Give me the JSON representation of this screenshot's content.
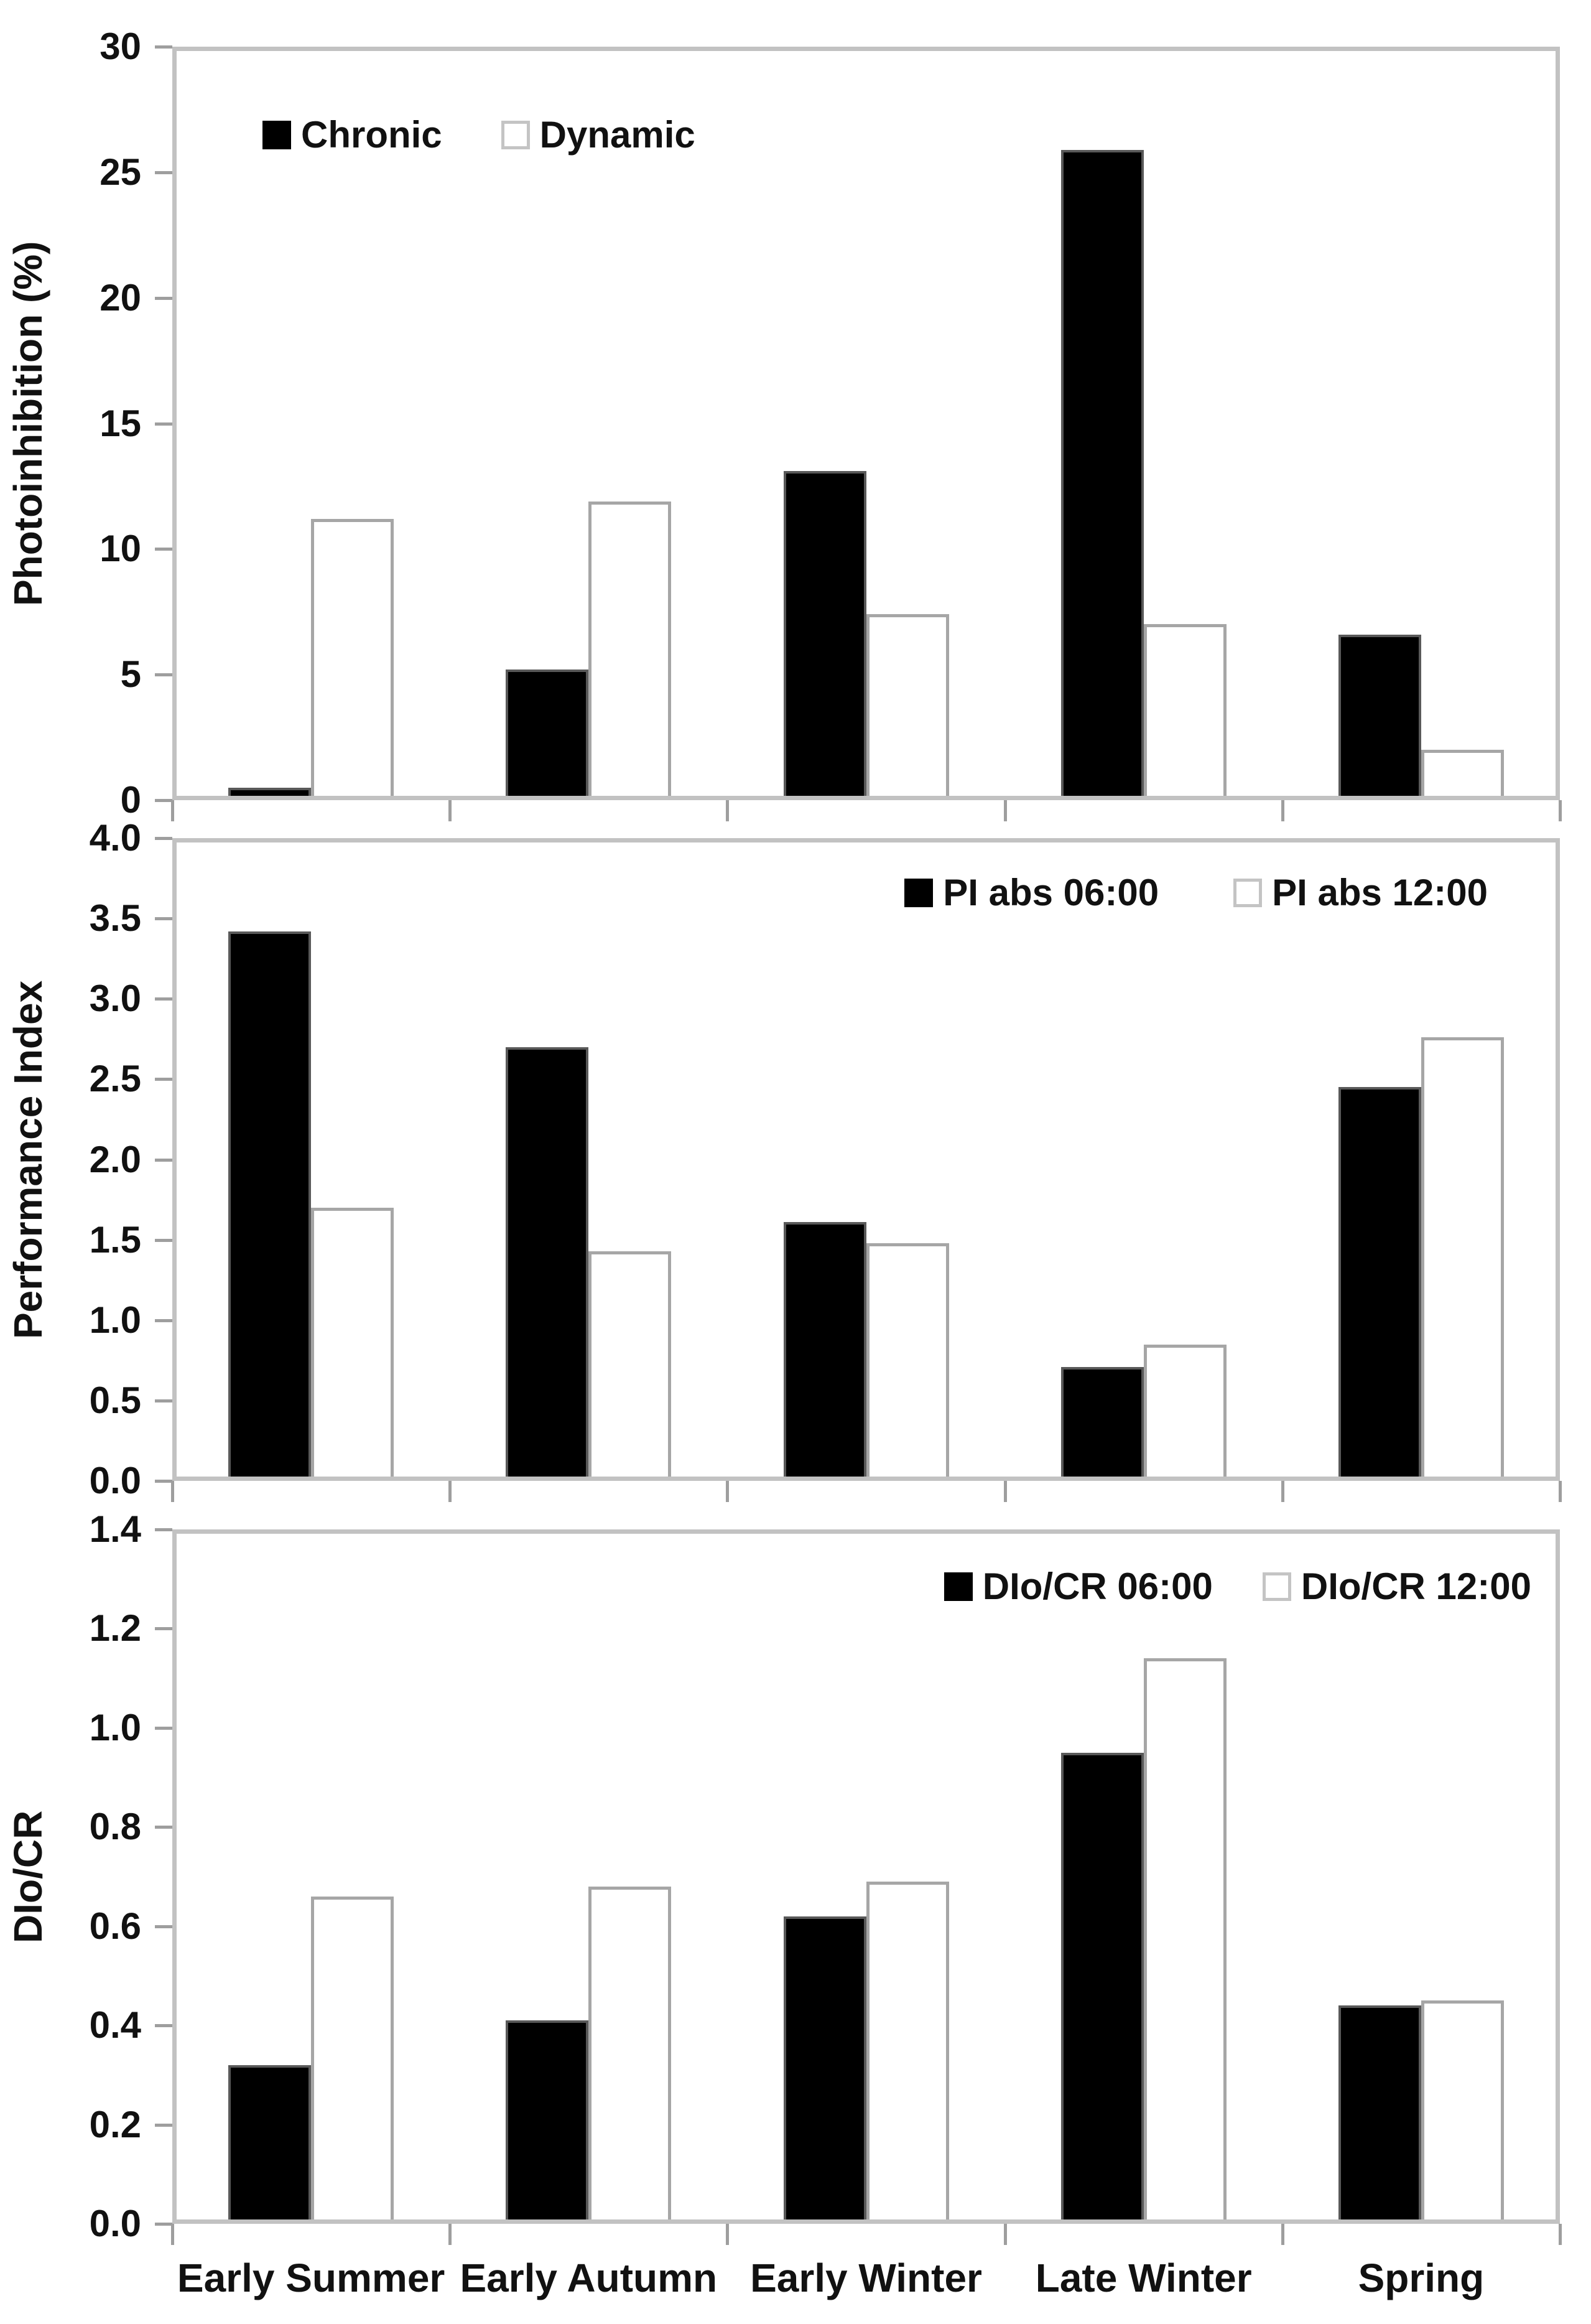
{
  "palette": {
    "bar_fill_dark": "#000000",
    "bar_fill_light": "#ffffff",
    "bar_outline": "#a6a6a6",
    "axis_line": "#c2c2c2",
    "tick_color": "#9e9e9e",
    "text_color": "#111111",
    "background": "#ffffff"
  },
  "categories": [
    "Early Summer",
    "Early Autumn",
    "Early Winter",
    "Late Winter",
    "Spring"
  ],
  "chart_data": [
    {
      "type": "bar",
      "title": "",
      "xlabel": "",
      "ylabel": "Photoinhibition (%)",
      "ylim": [
        0,
        30
      ],
      "ytick_labels": [
        "0",
        "5",
        "10",
        "15",
        "20",
        "25",
        "30"
      ],
      "grid": false,
      "legend_position": "top-left-inside",
      "categories": [
        "Early Summer",
        "Early Autumn",
        "Early Winter",
        "Late Winter",
        "Spring"
      ],
      "series": [
        {
          "name": "Chronic",
          "fill": "dark",
          "values": [
            0.5,
            5.2,
            13.1,
            25.9,
            6.6
          ]
        },
        {
          "name": "Dynamic",
          "fill": "light",
          "values": [
            11.2,
            11.9,
            7.4,
            7.0,
            2.0
          ]
        }
      ]
    },
    {
      "type": "bar",
      "title": "",
      "xlabel": "",
      "ylabel": "Performance Index",
      "ylim": [
        0,
        4.0
      ],
      "ytick_labels": [
        "0.0",
        "0.5",
        "1.0",
        "1.5",
        "2.0",
        "2.5",
        "3.0",
        "3.5",
        "4.0"
      ],
      "grid": false,
      "legend_position": "top-right-inside",
      "categories": [
        "Early Summer",
        "Early Autumn",
        "Early Winter",
        "Late Winter",
        "Spring"
      ],
      "series": [
        {
          "name": "PI abs 06:00",
          "fill": "dark",
          "values": [
            3.42,
            2.7,
            1.61,
            0.71,
            2.45
          ]
        },
        {
          "name": "PI abs 12:00",
          "fill": "light",
          "values": [
            1.7,
            1.43,
            1.48,
            0.85,
            2.76
          ]
        }
      ]
    },
    {
      "type": "bar",
      "title": "",
      "xlabel": "",
      "ylabel": "DIo/CR",
      "ylim": [
        0,
        1.4
      ],
      "ytick_labels": [
        "0.0",
        "0.2",
        "0.4",
        "0.6",
        "0.8",
        "1.0",
        "1.2",
        "1.4"
      ],
      "grid": false,
      "legend_position": "top-right-inside",
      "categories": [
        "Early Summer",
        "Early Autumn",
        "Early Winter",
        "Late Winter",
        "Spring"
      ],
      "series": [
        {
          "name": "DIo/CR 06:00",
          "fill": "dark",
          "values": [
            0.32,
            0.41,
            0.62,
            0.95,
            0.44
          ]
        },
        {
          "name": "DIo/CR 12:00",
          "fill": "light",
          "values": [
            0.66,
            0.68,
            0.69,
            1.14,
            0.45
          ]
        }
      ]
    }
  ]
}
